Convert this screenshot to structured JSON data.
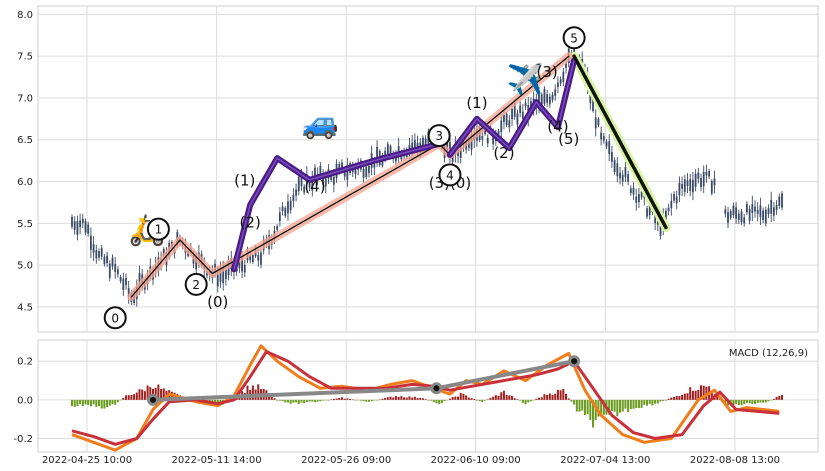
{
  "chart_data": [
    {
      "type": "candlestick",
      "panel": "price",
      "ylim": [
        4.2,
        8.1
      ],
      "yticks": [
        "4.5",
        "5.0",
        "5.5",
        "6.0",
        "6.5",
        "7.0",
        "7.5",
        "8.0"
      ],
      "grid": true,
      "price_path": [
        [
          0,
          5.52
        ],
        [
          5,
          5.5
        ],
        [
          10,
          5.1
        ],
        [
          16,
          4.95
        ],
        [
          22,
          4.62
        ],
        [
          30,
          4.95
        ],
        [
          40,
          5.3
        ],
        [
          46,
          5.1
        ],
        [
          52,
          4.9
        ],
        [
          56,
          4.88
        ],
        [
          62,
          5.0
        ],
        [
          70,
          5.12
        ],
        [
          75,
          5.4
        ],
        [
          80,
          5.75
        ],
        [
          85,
          5.95
        ],
        [
          90,
          6.05
        ],
        [
          96,
          6.05
        ],
        [
          100,
          6.12
        ],
        [
          108,
          6.18
        ],
        [
          116,
          6.3
        ],
        [
          124,
          6.4
        ],
        [
          130,
          6.45
        ],
        [
          136,
          6.55
        ],
        [
          140,
          6.32
        ],
        [
          142,
          6.32
        ],
        [
          146,
          6.5
        ],
        [
          150,
          6.6
        ],
        [
          156,
          6.55
        ],
        [
          162,
          6.75
        ],
        [
          168,
          6.85
        ],
        [
          174,
          6.95
        ],
        [
          178,
          7.05
        ],
        [
          184,
          7.45
        ],
        [
          186,
          7.5
        ],
        [
          190,
          7.3
        ],
        [
          196,
          6.5
        ],
        [
          200,
          6.3
        ],
        [
          204,
          6.1
        ],
        [
          208,
          5.9
        ],
        [
          212,
          5.75
        ],
        [
          216,
          5.55
        ],
        [
          219,
          5.45
        ],
        [
          223,
          5.8
        ],
        [
          227,
          5.95
        ],
        [
          232,
          6.05
        ],
        [
          238,
          6.0
        ],
        [
          240,
          5.95
        ],
        [
          242,
          5.6
        ],
        [
          247,
          5.62
        ],
        [
          252,
          5.6
        ],
        [
          256,
          5.62
        ],
        [
          260,
          5.72
        ],
        [
          263,
          5.75
        ]
      ],
      "gap_indices": [
        [
          239,
          241
        ]
      ],
      "pattern_lines": [
        {
          "name": "salmon-impulse",
          "color": "#f4a38f",
          "points": [
            [
              22,
              4.62
            ],
            [
              40,
              5.3
            ],
            [
              52,
              4.9
            ],
            [
              136,
              6.45
            ],
            [
              140,
              6.32
            ],
            [
              184,
              7.5
            ]
          ]
        },
        {
          "name": "black-impulse",
          "color": "#111111",
          "points": [
            [
              22,
              4.62
            ],
            [
              40,
              5.3
            ],
            [
              52,
              4.9
            ],
            [
              136,
              6.45
            ],
            [
              140,
              6.32
            ],
            [
              184,
              7.5
            ]
          ]
        },
        {
          "name": "purple-subwave-1",
          "color": "#4b1c87",
          "points": [
            [
              60,
              4.95
            ],
            [
              66,
              5.72
            ],
            [
              76,
              6.28
            ],
            [
              88,
              6.02
            ],
            [
              112,
              6.25
            ],
            [
              136,
              6.45
            ]
          ]
        },
        {
          "name": "purple-subwave-2",
          "color": "#4b1c87",
          "points": [
            [
              140,
              6.32
            ],
            [
              150,
              6.75
            ],
            [
              162,
              6.4
            ],
            [
              172,
              6.95
            ],
            [
              180,
              6.65
            ],
            [
              186,
              7.45
            ]
          ]
        },
        {
          "name": "downtrend",
          "color": "#111111",
          "points": [
            [
              186,
              7.5
            ],
            [
              220,
              5.45
            ]
          ]
        }
      ],
      "labels": [
        {
          "text": "(0)",
          "x": 54,
          "y": 4.5
        },
        {
          "text": "(1)",
          "x": 64,
          "y": 5.95
        },
        {
          "text": "(2)",
          "x": 66,
          "y": 5.45
        },
        {
          "text": "(4)",
          "x": 90,
          "y": 5.88
        },
        {
          "text": "(3)(0)",
          "x": 140,
          "y": 5.92
        },
        {
          "text": "(1)",
          "x": 150,
          "y": 6.88
        },
        {
          "text": "(2)",
          "x": 160,
          "y": 6.28
        },
        {
          "text": "(3)",
          "x": 176,
          "y": 7.25
        },
        {
          "text": "(4)",
          "x": 180,
          "y": 6.6
        },
        {
          "text": "(5)",
          "x": 184,
          "y": 6.45
        }
      ],
      "circle_markers": [
        {
          "text": "0",
          "x": 16,
          "y": 4.37
        },
        {
          "text": "1",
          "x": 32,
          "y": 5.43
        },
        {
          "text": "2",
          "x": 46,
          "y": 4.77
        },
        {
          "text": "3",
          "x": 136,
          "y": 6.55
        },
        {
          "text": "4",
          "x": 140,
          "y": 6.08
        },
        {
          "text": "5",
          "x": 186,
          "y": 7.72
        }
      ],
      "emojis": [
        {
          "name": "scooter",
          "glyph": "🛵",
          "x": 28,
          "y": 5.3
        },
        {
          "name": "car",
          "glyph": "🚙",
          "x": 92,
          "y": 6.58
        },
        {
          "name": "airplane",
          "glyph": "✈️",
          "x": 168,
          "y": 7.1
        }
      ]
    },
    {
      "type": "macd",
      "panel": "indicator",
      "legend": "MACD (12,26,9)",
      "legend_position": "top-right",
      "ylim": [
        -0.27,
        0.31
      ],
      "yticks": [
        "-0.2",
        "0.0",
        "0.2"
      ],
      "x_tick_labels": [
        "2022-04-25 10:00",
        "2022-05-11 14:00",
        "2022-05-26 09:00",
        "2022-06-10 09:00",
        "2022-07-04 13:00",
        "2022-08-08 13:00"
      ],
      "macd_line": [
        [
          0,
          -0.18
        ],
        [
          8,
          -0.22
        ],
        [
          16,
          -0.26
        ],
        [
          24,
          -0.2
        ],
        [
          30,
          -0.05
        ],
        [
          36,
          0.03
        ],
        [
          46,
          -0.01
        ],
        [
          54,
          -0.03
        ],
        [
          60,
          0.02
        ],
        [
          66,
          0.18
        ],
        [
          70,
          0.28
        ],
        [
          76,
          0.2
        ],
        [
          84,
          0.12
        ],
        [
          92,
          0.06
        ],
        [
          100,
          0.07
        ],
        [
          110,
          0.05
        ],
        [
          118,
          0.08
        ],
        [
          126,
          0.1
        ],
        [
          134,
          0.06
        ],
        [
          140,
          0.03
        ],
        [
          146,
          0.1
        ],
        [
          152,
          0.08
        ],
        [
          160,
          0.15
        ],
        [
          168,
          0.1
        ],
        [
          176,
          0.18
        ],
        [
          184,
          0.24
        ],
        [
          190,
          0.05
        ],
        [
          196,
          -0.08
        ],
        [
          204,
          -0.18
        ],
        [
          212,
          -0.22
        ],
        [
          222,
          -0.2
        ],
        [
          232,
          0.0
        ],
        [
          238,
          0.05
        ],
        [
          244,
          -0.06
        ],
        [
          250,
          -0.04
        ],
        [
          256,
          -0.05
        ],
        [
          262,
          -0.06
        ]
      ],
      "signal_line": [
        [
          0,
          -0.16
        ],
        [
          8,
          -0.19
        ],
        [
          16,
          -0.23
        ],
        [
          24,
          -0.2
        ],
        [
          30,
          -0.1
        ],
        [
          36,
          -0.01
        ],
        [
          46,
          0.0
        ],
        [
          54,
          -0.02
        ],
        [
          60,
          0.0
        ],
        [
          66,
          0.12
        ],
        [
          72,
          0.25
        ],
        [
          80,
          0.2
        ],
        [
          88,
          0.12
        ],
        [
          96,
          0.06
        ],
        [
          106,
          0.06
        ],
        [
          116,
          0.06
        ],
        [
          126,
          0.08
        ],
        [
          134,
          0.07
        ],
        [
          140,
          0.05
        ],
        [
          148,
          0.07
        ],
        [
          156,
          0.09
        ],
        [
          164,
          0.11
        ],
        [
          172,
          0.13
        ],
        [
          180,
          0.16
        ],
        [
          186,
          0.2
        ],
        [
          192,
          0.08
        ],
        [
          200,
          -0.08
        ],
        [
          208,
          -0.17
        ],
        [
          216,
          -0.2
        ],
        [
          226,
          -0.18
        ],
        [
          234,
          -0.03
        ],
        [
          240,
          0.04
        ],
        [
          246,
          -0.05
        ],
        [
          254,
          -0.06
        ],
        [
          262,
          -0.07
        ]
      ],
      "histogram": [
        [
          0,
          -0.03
        ],
        [
          8,
          -0.03
        ],
        [
          14,
          -0.04
        ],
        [
          20,
          0.02
        ],
        [
          26,
          0.05
        ],
        [
          30,
          0.08
        ],
        [
          34,
          0.05
        ],
        [
          40,
          0.02
        ],
        [
          48,
          -0.01
        ],
        [
          56,
          -0.02
        ],
        [
          62,
          0.03
        ],
        [
          66,
          0.07
        ],
        [
          70,
          0.06
        ],
        [
          76,
          0.0
        ],
        [
          82,
          -0.02
        ],
        [
          90,
          -0.01
        ],
        [
          100,
          0.01
        ],
        [
          110,
          -0.01
        ],
        [
          120,
          0.02
        ],
        [
          130,
          0.01
        ],
        [
          136,
          -0.02
        ],
        [
          144,
          0.03
        ],
        [
          152,
          -0.01
        ],
        [
          160,
          0.04
        ],
        [
          168,
          -0.02
        ],
        [
          176,
          0.03
        ],
        [
          182,
          0.05
        ],
        [
          188,
          -0.07
        ],
        [
          194,
          -0.12
        ],
        [
          200,
          -0.08
        ],
        [
          208,
          -0.04
        ],
        [
          216,
          -0.02
        ],
        [
          224,
          0.02
        ],
        [
          230,
          0.06
        ],
        [
          236,
          0.07
        ],
        [
          242,
          -0.03
        ],
        [
          250,
          -0.02
        ],
        [
          258,
          -0.01
        ],
        [
          262,
          0.02
        ]
      ],
      "trend_points": [
        [
          30,
          0.0
        ],
        [
          135,
          0.06
        ],
        [
          186,
          0.2
        ]
      ]
    }
  ]
}
